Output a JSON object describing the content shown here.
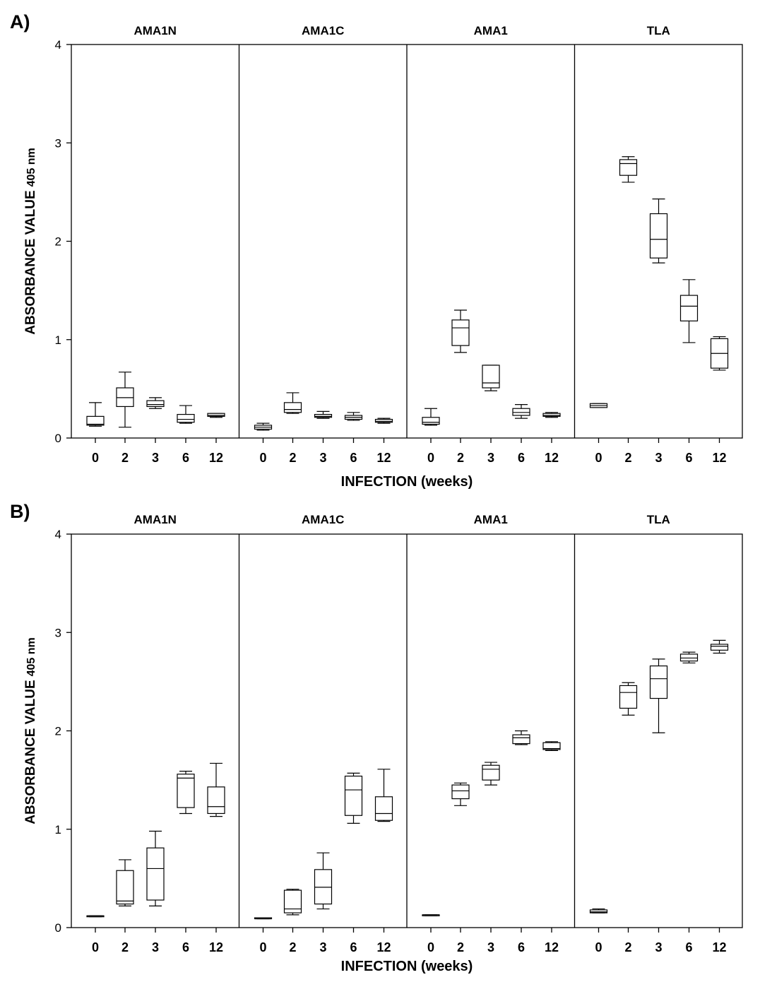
{
  "figure": {
    "panel_labels": [
      "A)",
      "B)"
    ]
  },
  "chart_data": [
    {
      "type": "boxplot",
      "panel": "A)",
      "ylabel": "ABSORBANCE VALUE",
      "ylabel_subscript": "405 nm",
      "xlabel": "INFECTION (weeks)",
      "ylim": [
        0,
        4
      ],
      "yticks": [
        "0",
        "1",
        "2",
        "3",
        "4"
      ],
      "categories": [
        "0",
        "2",
        "3",
        "6",
        "12"
      ],
      "facets": [
        {
          "name": "AMA1N",
          "boxes": [
            {
              "min": 0.12,
              "q1": 0.13,
              "median": 0.14,
              "q3": 0.22,
              "max": 0.36
            },
            {
              "min": 0.11,
              "q1": 0.32,
              "median": 0.41,
              "q3": 0.51,
              "max": 0.67
            },
            {
              "min": 0.3,
              "q1": 0.32,
              "median": 0.34,
              "q3": 0.38,
              "max": 0.41
            },
            {
              "min": 0.15,
              "q1": 0.16,
              "median": 0.19,
              "q3": 0.24,
              "max": 0.33
            },
            {
              "min": 0.21,
              "q1": 0.22,
              "median": 0.23,
              "q3": 0.25,
              "max": 0.25
            }
          ]
        },
        {
          "name": "AMA1C",
          "boxes": [
            {
              "min": 0.08,
              "q1": 0.09,
              "median": 0.11,
              "q3": 0.13,
              "max": 0.15
            },
            {
              "min": 0.25,
              "q1": 0.26,
              "median": 0.29,
              "q3": 0.36,
              "max": 0.46
            },
            {
              "min": 0.2,
              "q1": 0.21,
              "median": 0.22,
              "q3": 0.24,
              "max": 0.27
            },
            {
              "min": 0.18,
              "q1": 0.19,
              "median": 0.21,
              "q3": 0.23,
              "max": 0.26
            },
            {
              "min": 0.15,
              "q1": 0.16,
              "median": 0.17,
              "q3": 0.19,
              "max": 0.2
            }
          ]
        },
        {
          "name": "AMA1",
          "boxes": [
            {
              "min": 0.13,
              "q1": 0.14,
              "median": 0.16,
              "q3": 0.21,
              "max": 0.3
            },
            {
              "min": 0.87,
              "q1": 0.94,
              "median": 1.12,
              "q3": 1.2,
              "max": 1.3
            },
            {
              "min": 0.48,
              "q1": 0.51,
              "median": 0.56,
              "q3": 0.74,
              "max": 0.74
            },
            {
              "min": 0.2,
              "q1": 0.23,
              "median": 0.26,
              "q3": 0.3,
              "max": 0.34
            },
            {
              "min": 0.21,
              "q1": 0.22,
              "median": 0.23,
              "q3": 0.25,
              "max": 0.26
            }
          ]
        },
        {
          "name": "TLA",
          "boxes": [
            {
              "min": 0.31,
              "q1": 0.31,
              "median": 0.33,
              "q3": 0.35,
              "max": 0.35
            },
            {
              "min": 2.6,
              "q1": 2.67,
              "median": 2.79,
              "q3": 2.83,
              "max": 2.86
            },
            {
              "min": 1.78,
              "q1": 1.83,
              "median": 2.02,
              "q3": 2.28,
              "max": 2.43
            },
            {
              "min": 0.97,
              "q1": 1.19,
              "median": 1.34,
              "q3": 1.45,
              "max": 1.61
            },
            {
              "min": 0.69,
              "q1": 0.71,
              "median": 0.86,
              "q3": 1.01,
              "max": 1.03
            }
          ]
        }
      ]
    },
    {
      "type": "boxplot",
      "panel": "B)",
      "ylabel": "ABSORBANCE VALUE",
      "ylabel_subscript": "405 nm",
      "xlabel": "INFECTION (weeks)",
      "ylim": [
        0,
        4
      ],
      "yticks": [
        "0",
        "1",
        "2",
        "3",
        "4"
      ],
      "categories": [
        "0",
        "2",
        "3",
        "6",
        "12"
      ],
      "facets": [
        {
          "name": "AMA1N",
          "boxes": [
            {
              "min": 0.11,
              "q1": 0.11,
              "median": 0.12,
              "q3": 0.12,
              "max": 0.12
            },
            {
              "min": 0.22,
              "q1": 0.24,
              "median": 0.27,
              "q3": 0.58,
              "max": 0.69
            },
            {
              "min": 0.22,
              "q1": 0.28,
              "median": 0.6,
              "q3": 0.81,
              "max": 0.98
            },
            {
              "min": 1.16,
              "q1": 1.22,
              "median": 1.52,
              "q3": 1.56,
              "max": 1.59
            },
            {
              "min": 1.13,
              "q1": 1.16,
              "median": 1.23,
              "q3": 1.43,
              "max": 1.67
            }
          ]
        },
        {
          "name": "AMA1C",
          "boxes": [
            {
              "min": 0.09,
              "q1": 0.09,
              "median": 0.09,
              "q3": 0.1,
              "max": 0.1
            },
            {
              "min": 0.13,
              "q1": 0.15,
              "median": 0.19,
              "q3": 0.38,
              "max": 0.39
            },
            {
              "min": 0.19,
              "q1": 0.24,
              "median": 0.41,
              "q3": 0.59,
              "max": 0.76
            },
            {
              "min": 1.06,
              "q1": 1.14,
              "median": 1.4,
              "q3": 1.54,
              "max": 1.57
            },
            {
              "min": 1.08,
              "q1": 1.09,
              "median": 1.16,
              "q3": 1.33,
              "max": 1.61
            }
          ]
        },
        {
          "name": "AMA1",
          "boxes": [
            {
              "min": 0.12,
              "q1": 0.12,
              "median": 0.13,
              "q3": 0.13,
              "max": 0.13
            },
            {
              "min": 1.24,
              "q1": 1.31,
              "median": 1.39,
              "q3": 1.45,
              "max": 1.47
            },
            {
              "min": 1.45,
              "q1": 1.5,
              "median": 1.61,
              "q3": 1.65,
              "max": 1.68
            },
            {
              "min": 1.86,
              "q1": 1.87,
              "median": 1.93,
              "q3": 1.96,
              "max": 2.0
            },
            {
              "min": 1.8,
              "q1": 1.81,
              "median": 1.82,
              "q3": 1.88,
              "max": 1.89
            }
          ]
        },
        {
          "name": "TLA",
          "boxes": [
            {
              "min": 0.15,
              "q1": 0.15,
              "median": 0.16,
              "q3": 0.18,
              "max": 0.19
            },
            {
              "min": 2.16,
              "q1": 2.23,
              "median": 2.39,
              "q3": 2.46,
              "max": 2.49
            },
            {
              "min": 1.98,
              "q1": 2.33,
              "median": 2.53,
              "q3": 2.66,
              "max": 2.73
            },
            {
              "min": 2.69,
              "q1": 2.71,
              "median": 2.74,
              "q3": 2.78,
              "max": 2.8
            },
            {
              "min": 2.79,
              "q1": 2.82,
              "median": 2.86,
              "q3": 2.88,
              "max": 2.92
            }
          ]
        }
      ]
    }
  ]
}
